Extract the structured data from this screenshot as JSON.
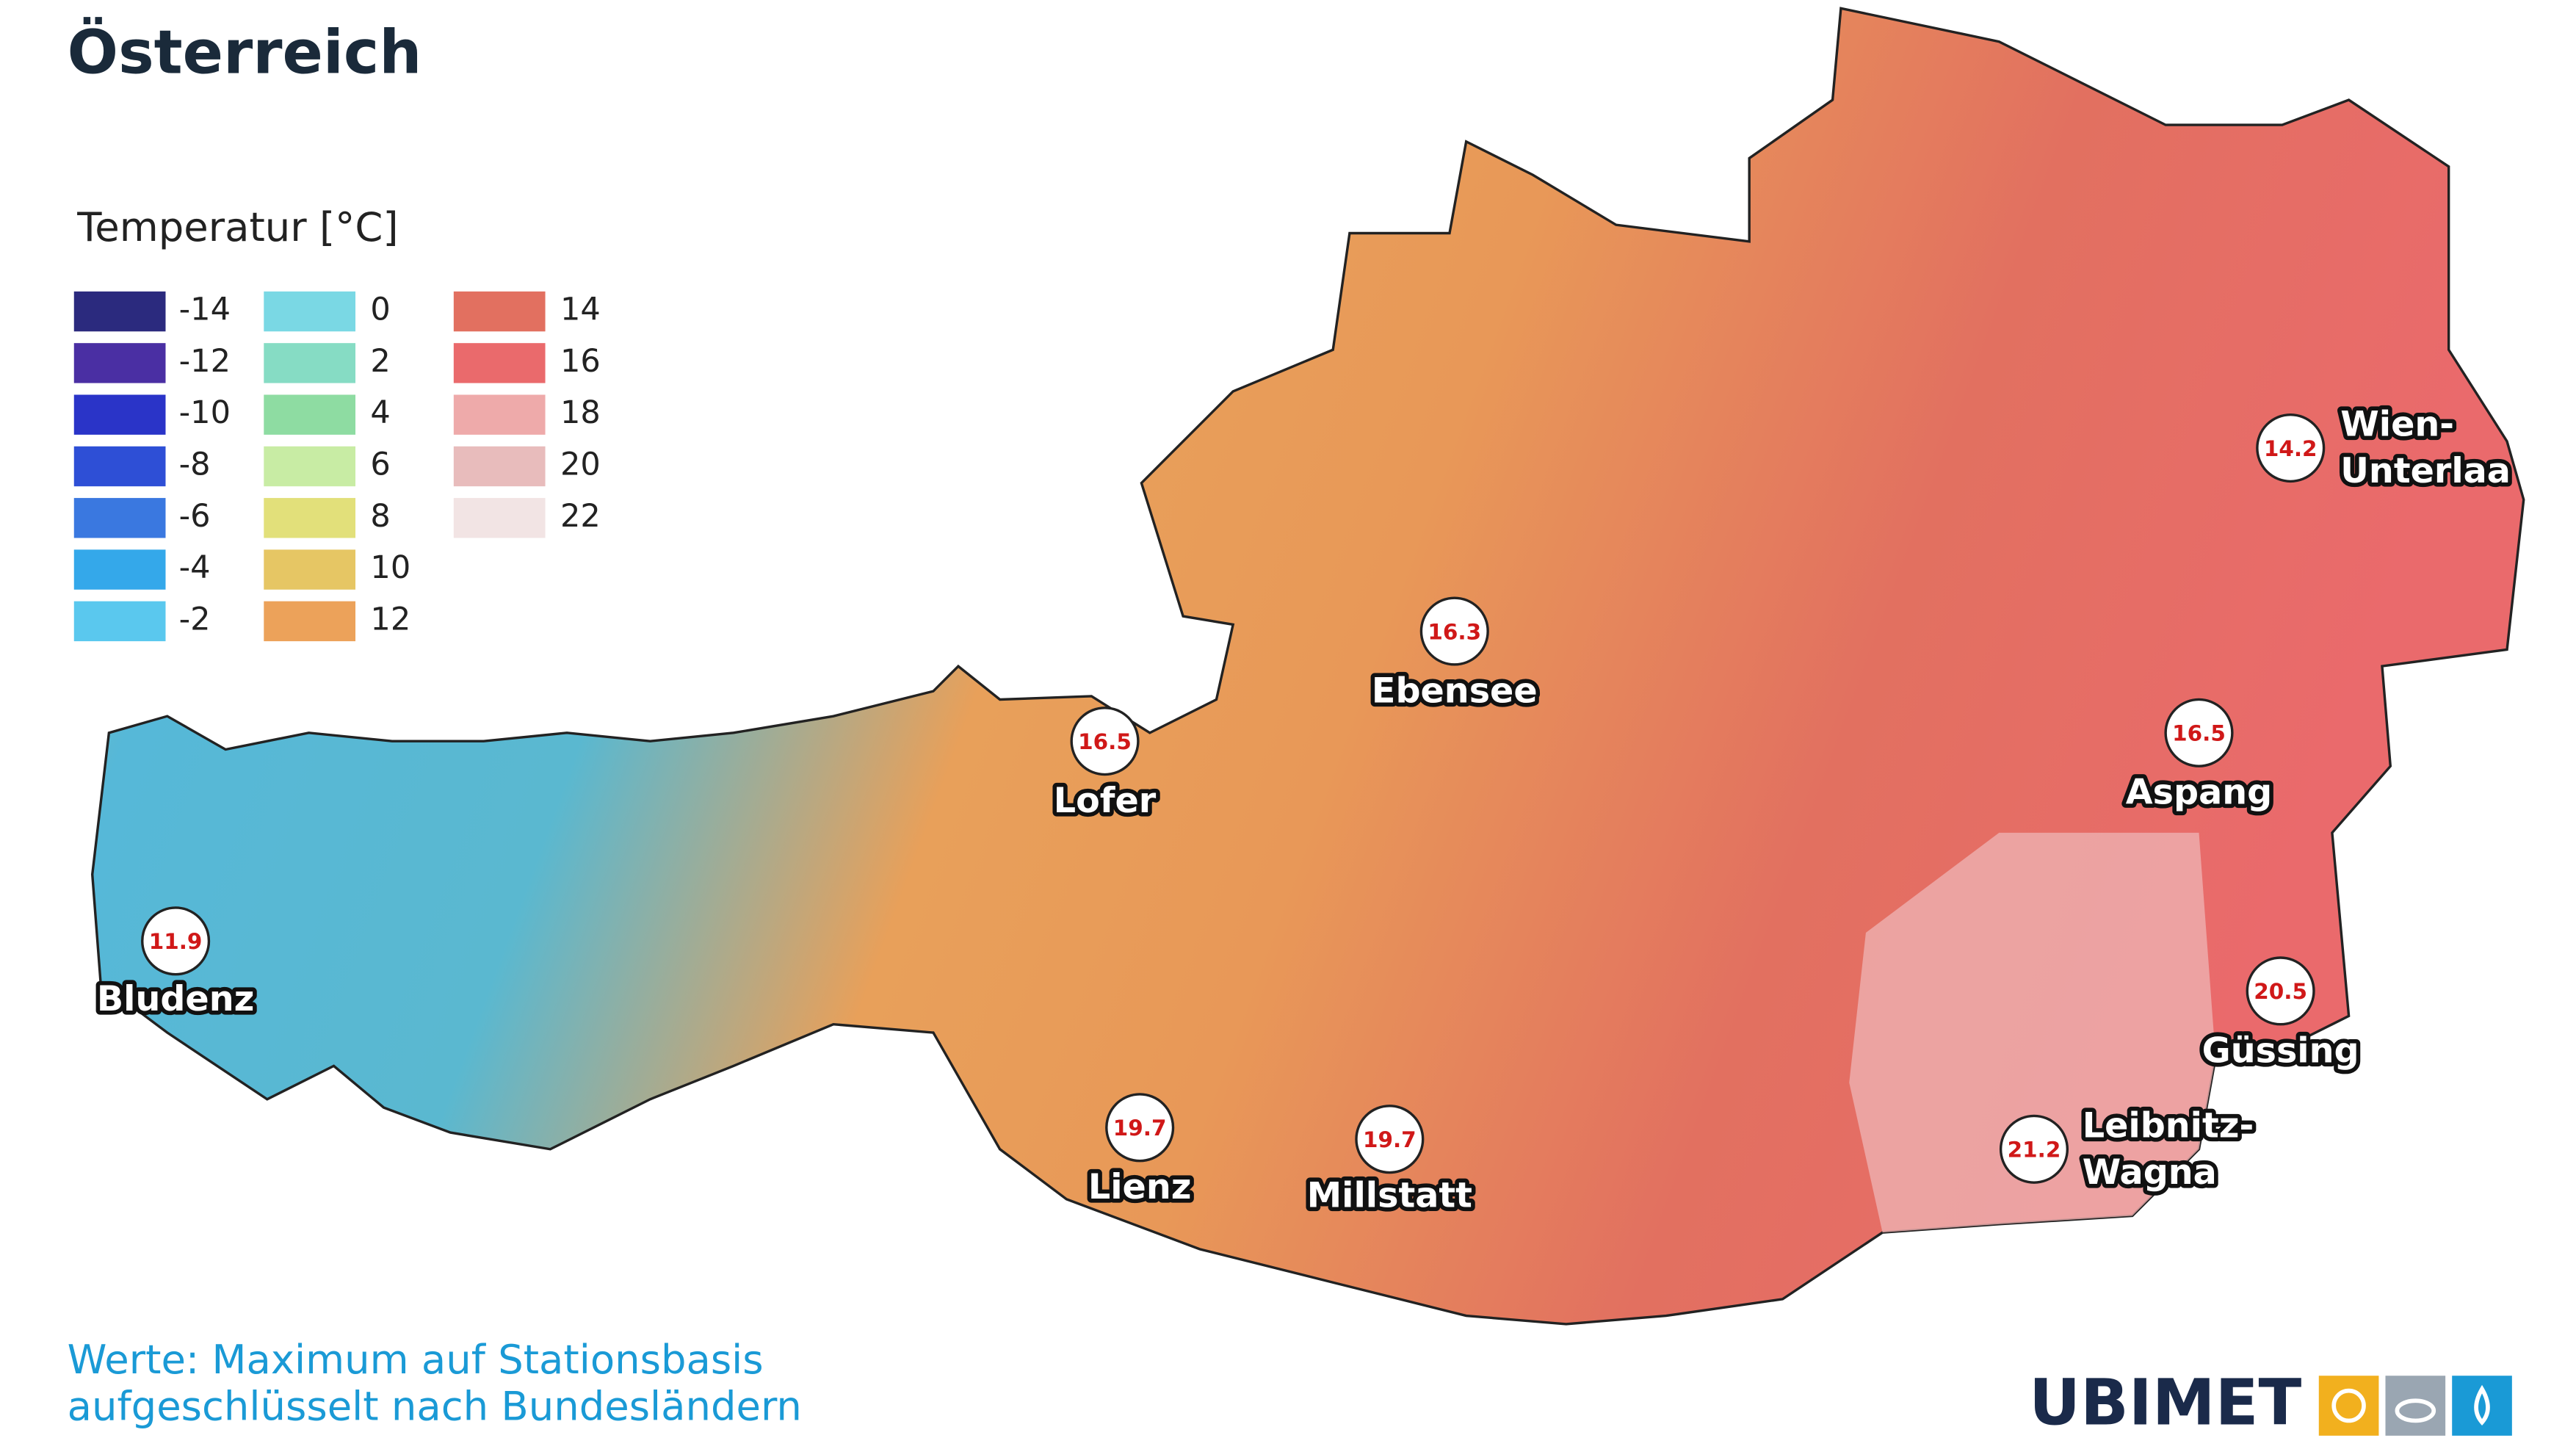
{
  "header": {
    "title": "Österreich"
  },
  "legend": {
    "title": "Temperatur [°C]",
    "items": [
      {
        "label": "-14",
        "color": "#2b2a7e"
      },
      {
        "label": "-12",
        "color": "#4a2fa3"
      },
      {
        "label": "-10",
        "color": "#2a34c8"
      },
      {
        "label": "-8",
        "color": "#2e4fd6"
      },
      {
        "label": "-6",
        "color": "#3a78e0"
      },
      {
        "label": "-4",
        "color": "#34a8ea"
      },
      {
        "label": "-2",
        "color": "#5ac8ee"
      },
      {
        "label": "0",
        "color": "#7ad8e4"
      },
      {
        "label": "2",
        "color": "#86dcc4"
      },
      {
        "label": "4",
        "color": "#8edca2"
      },
      {
        "label": "6",
        "color": "#c8eca4"
      },
      {
        "label": "8",
        "color": "#e2e07a"
      },
      {
        "label": "10",
        "color": "#e6c664"
      },
      {
        "label": "12",
        "color": "#eca25a"
      },
      {
        "label": "14",
        "color": "#e27060"
      },
      {
        "label": "16",
        "color": "#ea6a6c"
      },
      {
        "label": "18",
        "color": "#eeaaaa"
      },
      {
        "label": "20",
        "color": "#e8bcbc"
      },
      {
        "label": "22",
        "color": "#f2e4e4"
      }
    ]
  },
  "stations": [
    {
      "name": [
        "Bludenz"
      ],
      "value": "11.9"
    },
    {
      "name": [
        "Lofer"
      ],
      "value": "16.5"
    },
    {
      "name": [
        "Ebensee"
      ],
      "value": "16.3"
    },
    {
      "name": [
        "Wien-",
        "Unterlaa"
      ],
      "value": "14.2"
    },
    {
      "name": [
        "Aspang"
      ],
      "value": "16.5"
    },
    {
      "name": [
        "Güssing"
      ],
      "value": "20.5"
    },
    {
      "name": [
        "Leibnitz-",
        "Wagna"
      ],
      "value": "21.2"
    },
    {
      "name": [
        "Lienz"
      ],
      "value": "19.7"
    },
    {
      "name": [
        "Millstatt"
      ],
      "value": "19.7"
    }
  ],
  "footer": {
    "lines": [
      "Werte: Maximum auf Stationsbasis",
      "aufgeschlüsselt nach Bundesländern"
    ],
    "logo": "UBIMET"
  }
}
